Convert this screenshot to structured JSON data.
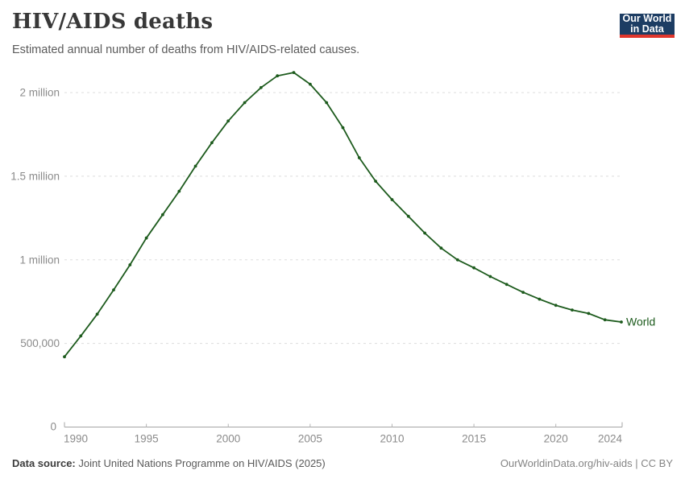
{
  "header": {
    "title": "HIV/AIDS deaths",
    "subtitle": "Estimated annual number of deaths from HIV/AIDS-related causes.",
    "logo": {
      "line1": "Our World",
      "line2": "in Data"
    }
  },
  "footer": {
    "source_label": "Data source:",
    "source_text": "Joint United Nations Programme on HIV/AIDS (2025)",
    "attribution": "OurWorldinData.org/hiv-aids | CC BY"
  },
  "colors": {
    "series": "#1d5b1d",
    "logo_bg": "#1d3d63",
    "logo_accent": "#e0362c",
    "grid": "#dddddd",
    "axis": "#a5a5a5",
    "tick": "#b5b5b5",
    "tick_label": "#8b8b8b",
    "title": "#383838",
    "subtitle": "#5b5b5b"
  },
  "chart_data": {
    "type": "line",
    "title": "HIV/AIDS deaths",
    "subtitle": "Estimated annual number of deaths from HIV/AIDS-related causes.",
    "xlabel": "",
    "ylabel": "",
    "xlim": [
      1990,
      2024
    ],
    "ylim": [
      0,
      2200000
    ],
    "grid": "horizontal-dashed",
    "legend": "end-of-line-label",
    "xticks": [
      1990,
      1995,
      2000,
      2005,
      2010,
      2015,
      2020,
      2024
    ],
    "yticks": [
      {
        "value": 0,
        "label": "0"
      },
      {
        "value": 500000,
        "label": "500,000"
      },
      {
        "value": 1000000,
        "label": "1 million"
      },
      {
        "value": 1500000,
        "label": "1.5 million"
      },
      {
        "value": 2000000,
        "label": "2 million"
      }
    ],
    "series": [
      {
        "name": "World",
        "x": [
          1990,
          1991,
          1992,
          1993,
          1994,
          1995,
          1996,
          1997,
          1998,
          1999,
          2000,
          2001,
          2002,
          2003,
          2004,
          2005,
          2006,
          2007,
          2008,
          2009,
          2010,
          2011,
          2012,
          2013,
          2014,
          2015,
          2016,
          2017,
          2018,
          2019,
          2020,
          2021,
          2022,
          2023,
          2024
        ],
        "values": [
          420000,
          545000,
          675000,
          820000,
          970000,
          1130000,
          1270000,
          1410000,
          1560000,
          1700000,
          1830000,
          1940000,
          2030000,
          2100000,
          2120000,
          2050000,
          1940000,
          1790000,
          1610000,
          1470000,
          1360000,
          1260000,
          1160000,
          1070000,
          1000000,
          952000,
          900000,
          853000,
          806000,
          765000,
          728000,
          700000,
          679000,
          641000,
          628000
        ]
      }
    ]
  }
}
